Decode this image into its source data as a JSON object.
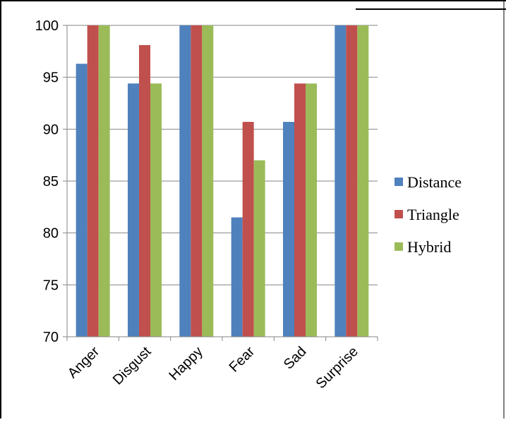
{
  "chart_data": {
    "type": "bar",
    "categories": [
      "Anger",
      "Disgust",
      "Happy",
      "Fear",
      "Sad",
      "Surprise"
    ],
    "series": [
      {
        "name": "Distance",
        "color": "#4F81BD",
        "values": [
          96.3,
          94.4,
          100,
          81.5,
          90.7,
          100
        ]
      },
      {
        "name": "Triangle",
        "color": "#C0504D",
        "values": [
          100,
          98.1,
          100,
          90.7,
          94.4,
          100
        ]
      },
      {
        "name": "Hybrid",
        "color": "#9BBB59",
        "values": [
          100,
          94.4,
          100,
          87.0,
          94.4,
          100
        ]
      }
    ],
    "title": "",
    "xlabel": "",
    "ylabel": "",
    "ylim": [
      70,
      100
    ],
    "yticks": [
      70,
      75,
      80,
      85,
      90,
      95,
      100
    ],
    "grid": true,
    "legend_position": "right"
  }
}
